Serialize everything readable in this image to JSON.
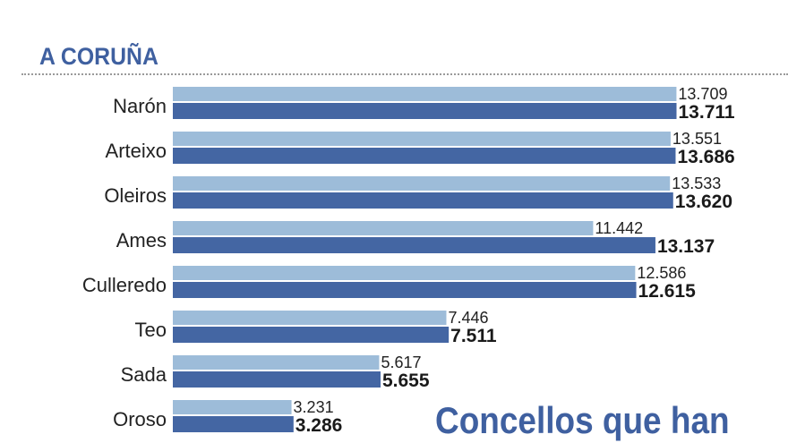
{
  "region_title": "A CORUÑA",
  "headline": "Concellos que han",
  "chart_data": {
    "type": "bar",
    "orientation": "horizontal",
    "categories": [
      "Narón",
      "Arteixo",
      "Oleiros",
      "Ames",
      "Culleredo",
      "Teo",
      "Sada",
      "Oroso"
    ],
    "series": [
      {
        "values": [
          13709,
          13551,
          13533,
          11442,
          12586,
          7446,
          5617,
          3231
        ],
        "color": "#9dbcd9"
      },
      {
        "values": [
          13711,
          13686,
          13620,
          13137,
          12615,
          7511,
          5655,
          3286
        ],
        "color": "#4466a3"
      }
    ],
    "value_labels": [
      [
        "13.709",
        "13.551",
        "13.533",
        "11.442",
        "12.586",
        "7.446",
        "5.617",
        "3.231"
      ],
      [
        "13.711",
        "13.686",
        "13.620",
        "13.137",
        "12.615",
        "7.511",
        "5.655",
        "3.286"
      ]
    ],
    "xlim": [
      0,
      13711
    ],
    "grid": false,
    "legend": "none"
  }
}
